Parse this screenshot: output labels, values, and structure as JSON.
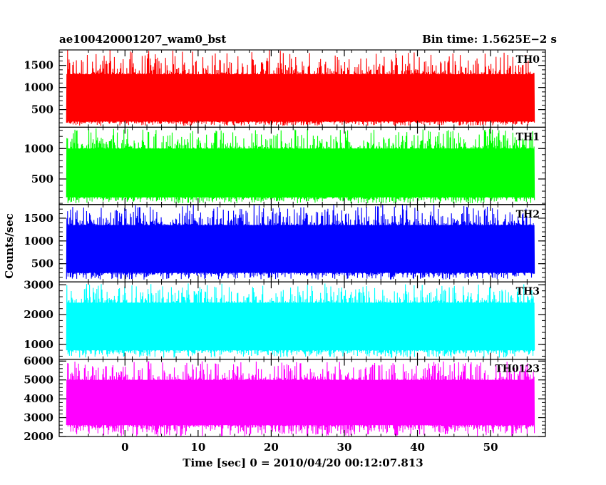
{
  "header": {
    "left_title": "ae100420001207_wam0_bst",
    "right_title": "Bin time: 1.5625E−2 s"
  },
  "y_axis_label": "Counts/sec",
  "x_axis_label": "Time [sec] 0 = 2010/04/20 00:12:07.813",
  "chart_data": {
    "type": "line",
    "title": "ae100420001207_wam0_bst",
    "subtitle": "Bin time: 1.5625E−2 s",
    "xlabel": "Time [sec] 0 = 2010/04/20 00:12:07.813",
    "ylabel": "Counts/sec",
    "xlim": [
      -9,
      57.5
    ],
    "x_ticks": [
      0,
      10,
      20,
      30,
      40,
      50
    ],
    "x_tick_labels": [
      "0",
      "10",
      "20",
      "30",
      "40",
      "50"
    ],
    "data_range_x": [
      -8,
      56
    ],
    "panels": [
      {
        "name": "TH0",
        "color": "#ff0000",
        "ylim": [
          100,
          1850
        ],
        "y_ticks": [
          500,
          1000,
          1500
        ],
        "y_tick_labels": [
          "500",
          "1000",
          "1500"
        ],
        "typical_range": [
          230,
          1300
        ],
        "min": 130,
        "max": 1850
      },
      {
        "name": "TH1",
        "color": "#00ff00",
        "ylim": [
          80,
          1350
        ],
        "y_ticks": [
          500,
          1000
        ],
        "y_tick_labels": [
          "500",
          "1000"
        ],
        "typical_range": [
          200,
          1000
        ],
        "min": 100,
        "max": 1330
      },
      {
        "name": "TH2",
        "color": "#0000ff",
        "ylim": [
          100,
          1800
        ],
        "y_ticks": [
          500,
          1000,
          1500
        ],
        "y_tick_labels": [
          "500",
          "1000",
          "1500"
        ],
        "typical_range": [
          300,
          1350
        ],
        "min": 150,
        "max": 1800
      },
      {
        "name": "TH3",
        "color": "#00ffff",
        "ylim": [
          500,
          3100
        ],
        "y_ticks": [
          1000,
          2000,
          3000
        ],
        "y_tick_labels": [
          "1000",
          "2000",
          "3000"
        ],
        "typical_range": [
          800,
          2400
        ],
        "min": 550,
        "max": 3050
      },
      {
        "name": "TH0123",
        "color": "#ff00ff",
        "ylim": [
          2000,
          6100
        ],
        "y_ticks": [
          2000,
          3000,
          4000,
          5000,
          6000
        ],
        "y_tick_labels": [
          "2000",
          "3000",
          "4000",
          "5000",
          "6000"
        ],
        "typical_range": [
          2600,
          5000
        ],
        "min": 2000,
        "max": 6000
      }
    ]
  }
}
